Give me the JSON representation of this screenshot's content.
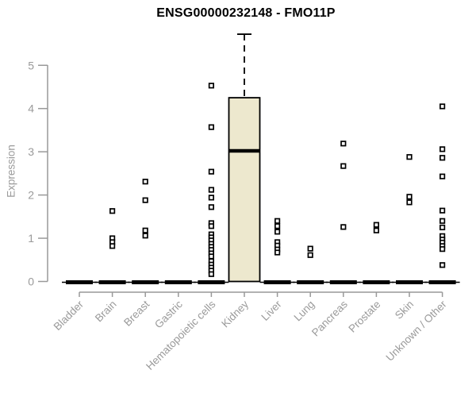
{
  "chart_data": {
    "type": "boxplot",
    "title": "ENSG00000232148 - FMO11P",
    "ylabel": "Expression",
    "ylim": [
      0,
      5.8
    ],
    "yticks": [
      0,
      1,
      2,
      3,
      4,
      5
    ],
    "grid": false,
    "legend": false,
    "categories": [
      "Bladder",
      "Brain",
      "Breast",
      "Gastric",
      "Hematopoietic cells",
      "Kidney",
      "Liver",
      "Lung",
      "Pancreas",
      "Prostate",
      "Skin",
      "Unknown / Other"
    ],
    "boxes": [
      {
        "category": "Bladder",
        "median": 0,
        "q1": 0,
        "q3": 0,
        "whisker_low": 0,
        "whisker_high": 0,
        "points": []
      },
      {
        "category": "Brain",
        "median": 0,
        "q1": 0,
        "q3": 0,
        "whisker_low": 0,
        "whisker_high": 0,
        "points": [
          1.63,
          1.0,
          0.91,
          0.82
        ]
      },
      {
        "category": "Breast",
        "median": 0,
        "q1": 0,
        "q3": 0,
        "whisker_low": 0,
        "whisker_high": 0,
        "points": [
          2.31,
          1.88,
          1.18,
          1.06
        ]
      },
      {
        "category": "Gastric",
        "median": 0,
        "q1": 0,
        "q3": 0,
        "whisker_low": 0,
        "whisker_high": 0,
        "points": []
      },
      {
        "category": "Hematopoietic cells",
        "median": 0,
        "q1": 0,
        "q3": 0,
        "whisker_low": 0,
        "whisker_high": 0,
        "points": [
          4.53,
          3.57,
          2.54,
          2.12,
          1.94,
          1.72,
          1.35,
          1.28,
          1.09,
          1.02,
          0.95,
          0.87,
          0.8,
          0.73,
          0.65,
          0.58,
          0.47,
          0.39,
          0.32,
          0.25,
          0.17
        ]
      },
      {
        "category": "Kidney",
        "median": 3.02,
        "q1": 0,
        "q3": 4.25,
        "whisker_low": 0,
        "whisker_high": 5.72,
        "points": []
      },
      {
        "category": "Liver",
        "median": 0,
        "q1": 0,
        "q3": 0,
        "whisker_low": 0,
        "whisker_high": 0,
        "points": [
          1.4,
          1.28,
          1.15,
          0.91,
          0.83,
          0.74,
          0.67
        ]
      },
      {
        "category": "Lung",
        "median": 0,
        "q1": 0,
        "q3": 0,
        "whisker_low": 0,
        "whisker_high": 0,
        "points": [
          0.76,
          0.61
        ]
      },
      {
        "category": "Pancreas",
        "median": 0,
        "q1": 0,
        "q3": 0,
        "whisker_low": 0,
        "whisker_high": 0,
        "points": [
          3.19,
          2.67,
          1.26
        ]
      },
      {
        "category": "Prostate",
        "median": 0,
        "q1": 0,
        "q3": 0,
        "whisker_low": 0,
        "whisker_high": 0,
        "points": [
          1.31,
          1.18
        ]
      },
      {
        "category": "Skin",
        "median": 0,
        "q1": 0,
        "q3": 0,
        "whisker_low": 0,
        "whisker_high": 0,
        "points": [
          2.88,
          1.96,
          1.83
        ]
      },
      {
        "category": "Unknown / Other",
        "median": 0,
        "q1": 0,
        "q3": 0,
        "whisker_low": 0,
        "whisker_high": 0,
        "points": [
          4.05,
          3.06,
          2.86,
          2.43,
          1.64,
          1.4,
          1.25,
          1.05,
          0.97,
          0.9,
          0.82,
          0.75,
          0.38
        ]
      }
    ],
    "colors": {
      "box_fill": "#EDE8CE",
      "box_stroke": "#000000",
      "median": "#000000",
      "point_stroke": "#000000",
      "point_fill": "#ffffff",
      "axis": "#999999",
      "tick_label": "#9a9a9a",
      "title": "#000000"
    }
  }
}
